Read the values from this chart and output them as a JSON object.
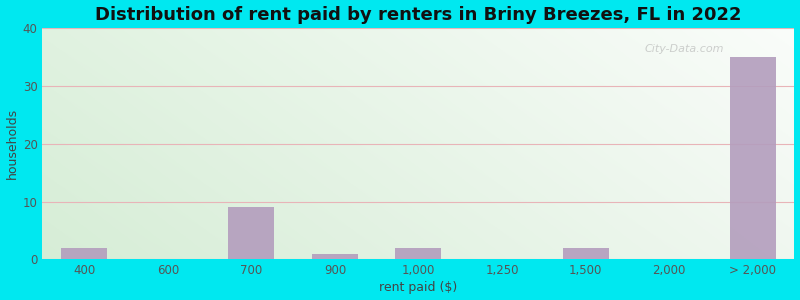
{
  "categories": [
    "400",
    "600",
    "700",
    "900",
    "1,000",
    "1,250",
    "1,500",
    "2,000",
    "> 2,000"
  ],
  "values": [
    2,
    0,
    9,
    1,
    2,
    0,
    2,
    0,
    35
  ],
  "bar_color": "#b39dbd",
  "title": "Distribution of rent paid by renters in Briny Breezes, FL in 2022",
  "xlabel": "rent paid ($)",
  "ylabel": "households",
  "ylim": [
    0,
    40
  ],
  "yticks": [
    0,
    10,
    20,
    30,
    40
  ],
  "background_outer": "#00e8f0",
  "bg_color_top_left": "#d4edda",
  "bg_color_top_right": "#f0f7f0",
  "bg_color_bottom": "#e8f5e9",
  "grid_color": "#e8b4b8",
  "title_fontsize": 13,
  "label_fontsize": 9,
  "tick_fontsize": 8.5
}
